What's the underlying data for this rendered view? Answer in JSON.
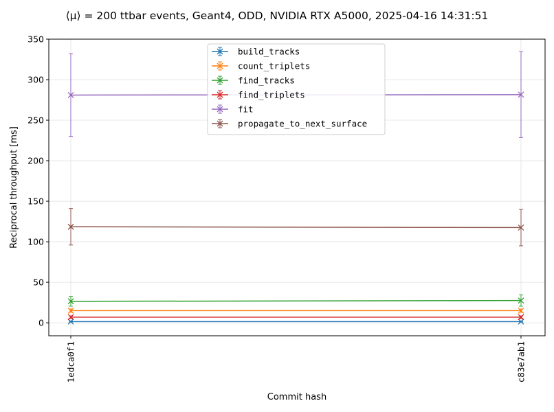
{
  "chart_data": {
    "type": "line",
    "title": "⟨μ⟩ = 200 ttbar events, Geant4, ODD, NVIDIA RTX A5000, 2025-04-16 14:31:51",
    "xlabel": "Commit hash",
    "ylabel": "Reciprocal throughput [ms]",
    "categories": [
      "1edca0f1",
      "c83e7ab1"
    ],
    "ylim": [
      -16,
      350
    ],
    "yticks": [
      0,
      50,
      100,
      150,
      200,
      250,
      300,
      350
    ],
    "grid": true,
    "legend_position": "top-center",
    "series": [
      {
        "name": "build_tracks",
        "color": "#1f77b4",
        "values": [
          1.5,
          1.5
        ],
        "errors": [
          0.6,
          0.6
        ]
      },
      {
        "name": "count_triplets",
        "color": "#ff7f0e",
        "values": [
          15,
          15
        ],
        "errors": [
          2,
          2
        ]
      },
      {
        "name": "find_tracks",
        "color": "#2ca02c",
        "values": [
          26.5,
          27.5
        ],
        "errors": [
          6,
          7
        ]
      },
      {
        "name": "find_triplets",
        "color": "#d62728",
        "values": [
          7,
          7
        ],
        "errors": [
          1.5,
          1.5
        ]
      },
      {
        "name": "fit",
        "color": "#9467bd",
        "values": [
          281,
          281.5
        ],
        "errors": [
          51,
          53
        ]
      },
      {
        "name": "propagate_to_next_surface",
        "color": "#8c564b",
        "values": [
          118.5,
          117.5
        ],
        "errors": [
          22.5,
          22.5
        ]
      }
    ]
  }
}
